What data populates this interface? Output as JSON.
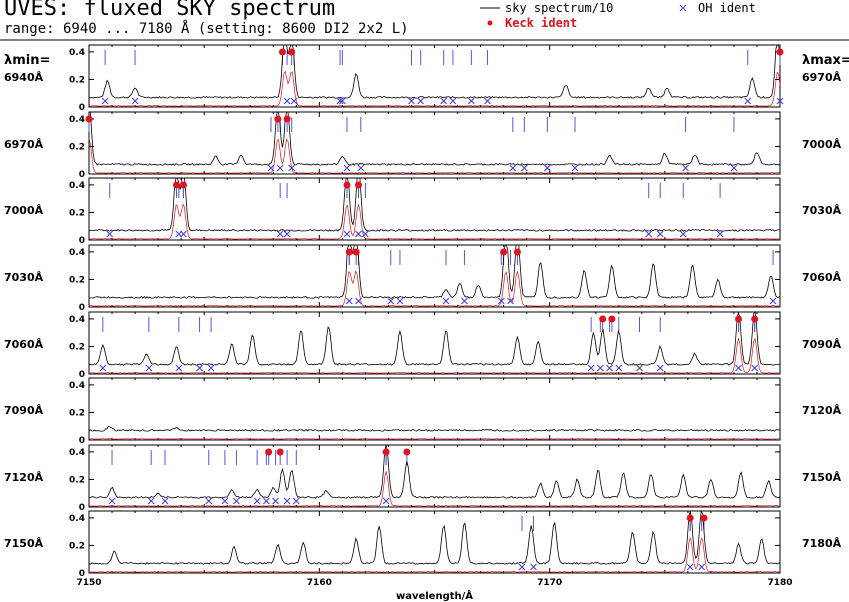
{
  "header": {
    "title": "UVES: fluxed SKY spectrum",
    "subtitle": "range: 6940 ... 7180 Å (setting: 8600 DI2 2x2 L)"
  },
  "legend": {
    "items": [
      {
        "label": "sky spectrum/10",
        "marker": "line",
        "color": "#000000"
      },
      {
        "label": "OH ident",
        "marker": "x",
        "color": "#3a3ae0"
      },
      {
        "label": "Keck ident",
        "marker": "dot",
        "color": "#e0141e"
      }
    ]
  },
  "side_headers": {
    "min": "λmin=",
    "max": "λmax="
  },
  "colors": {
    "spectrum": "#000000",
    "oh": "#3a3ae0",
    "keck": "#e0141e",
    "ticks": "#5555dd",
    "error": "#e0141e"
  },
  "chart_data": {
    "type": "line",
    "xlabel": "wavelength/Å",
    "bottom_axis": {
      "min": 7150,
      "max": 7180,
      "ticks": [
        "7150",
        "7160",
        "7170",
        "7180"
      ]
    },
    "ylim": [
      0,
      0.45
    ],
    "yticks": [
      "0",
      "0.2",
      "0.4"
    ],
    "grid": false,
    "legend_position": "top-right",
    "panels": [
      {
        "min_label": "6940Å",
        "max_label": "6970Å",
        "min": 6940,
        "max": 6970,
        "peaks": [
          [
            6940.8,
            0.12
          ],
          [
            6942.0,
            0.07
          ],
          [
            6948.5,
            0.48
          ],
          [
            6948.8,
            0.48
          ],
          [
            6951.6,
            0.17
          ],
          [
            6960.7,
            0.09
          ],
          [
            6964.3,
            0.07
          ],
          [
            6965.1,
            0.07
          ],
          [
            6968.8,
            0.14
          ],
          [
            6969.9,
            0.48
          ]
        ],
        "oh": [
          6940.7,
          6942.0,
          6948.6,
          6948.9,
          6950.9,
          6951.0,
          6954.0,
          6954.4,
          6955.4,
          6955.8,
          6956.6,
          6957.3,
          6968.6,
          6970.0
        ],
        "keck": [
          6948.4,
          6948.8,
          6970.0
        ]
      },
      {
        "min_label": "6970Å",
        "max_label": "7000Å",
        "min": 6970,
        "max": 7000,
        "peaks": [
          [
            6970.0,
            0.45
          ],
          [
            6975.5,
            0.06
          ],
          [
            6976.6,
            0.07
          ],
          [
            6978.2,
            0.45
          ],
          [
            6978.6,
            0.45
          ],
          [
            6981.0,
            0.06
          ],
          [
            6992.6,
            0.07
          ],
          [
            6995.0,
            0.08
          ],
          [
            6996.3,
            0.07
          ],
          [
            6999.0,
            0.09
          ]
        ],
        "oh": [
          6977.9,
          6978.3,
          6978.8,
          6981.2,
          6981.8,
          6988.4,
          6988.9,
          6989.9,
          6991.1,
          6995.9,
          6998.0
        ],
        "keck": [
          6970.0,
          6978.2,
          6978.6
        ]
      },
      {
        "min_label": "7000Å",
        "max_label": "7030Å",
        "min": 7000,
        "max": 7030,
        "peaks": [
          [
            7003.8,
            0.46
          ],
          [
            7004.1,
            0.46
          ],
          [
            7011.2,
            0.46
          ],
          [
            7011.7,
            0.46
          ]
        ],
        "oh": [
          7000.9,
          7003.9,
          7004.1,
          7008.3,
          7008.6,
          7011.2,
          7011.7,
          7012.0,
          7024.3,
          7024.8,
          7025.8,
          7027.4
        ],
        "keck": [
          7003.8,
          7004.1,
          7011.2,
          7011.7
        ]
      },
      {
        "min_label": "7030Å",
        "max_label": "7060Å",
        "min": 7030,
        "max": 7060,
        "peaks": [
          [
            7041.3,
            0.48
          ],
          [
            7041.6,
            0.48
          ],
          [
            7045.5,
            0.06
          ],
          [
            7046.1,
            0.1
          ],
          [
            7046.9,
            0.09
          ],
          [
            7048.1,
            0.48
          ],
          [
            7048.6,
            0.48
          ],
          [
            7049.6,
            0.26
          ],
          [
            7051.5,
            0.2
          ],
          [
            7052.7,
            0.23
          ],
          [
            7054.5,
            0.25
          ],
          [
            7056.2,
            0.24
          ],
          [
            7057.3,
            0.13
          ],
          [
            7059.6,
            0.16
          ]
        ],
        "oh": [
          7041.3,
          7041.7,
          7043.1,
          7043.5,
          7045.5,
          7046.3,
          7047.9,
          7048.3,
          7059.7
        ],
        "keck": [
          7041.3,
          7041.6,
          7048.0,
          7048.6
        ]
      },
      {
        "min_label": "7060Å",
        "max_label": "7090Å",
        "min": 7060,
        "max": 7090,
        "peaks": [
          [
            7060.6,
            0.14
          ],
          [
            7062.5,
            0.08
          ],
          [
            7063.8,
            0.13
          ],
          [
            7066.2,
            0.15
          ],
          [
            7067.1,
            0.22
          ],
          [
            7069.2,
            0.25
          ],
          [
            7070.4,
            0.28
          ],
          [
            7073.5,
            0.24
          ],
          [
            7075.5,
            0.25
          ],
          [
            7078.6,
            0.2
          ],
          [
            7079.5,
            0.17
          ],
          [
            7081.9,
            0.23
          ],
          [
            7082.3,
            0.25
          ],
          [
            7083.0,
            0.24
          ],
          [
            7084.8,
            0.13
          ],
          [
            7086.3,
            0.08
          ],
          [
            7088.2,
            0.4
          ],
          [
            7088.9,
            0.4
          ]
        ],
        "oh": [
          7060.6,
          7062.6,
          7063.9,
          7064.8,
          7065.3,
          7081.8,
          7082.2,
          7082.6,
          7083.0,
          7083.9,
          7084.8,
          7088.2,
          7088.9
        ],
        "keck": [
          7082.3,
          7082.7,
          7088.2,
          7088.9
        ]
      },
      {
        "min_label": "7090Å",
        "max_label": "7120Å",
        "min": 7090,
        "max": 7120,
        "peaks": [
          [
            7090.9,
            0.03
          ],
          [
            7093.8,
            0.02
          ]
        ],
        "oh": [],
        "keck": []
      },
      {
        "min_label": "7120Å",
        "max_label": "7150Å",
        "min": 7120,
        "max": 7150,
        "peaks": [
          [
            7121.0,
            0.07
          ],
          [
            7123.0,
            0.03
          ],
          [
            7126.2,
            0.05
          ],
          [
            7127.3,
            0.06
          ],
          [
            7128.0,
            0.07
          ],
          [
            7128.4,
            0.2
          ],
          [
            7128.8,
            0.2
          ],
          [
            7130.3,
            0.05
          ],
          [
            7132.9,
            0.4
          ],
          [
            7133.8,
            0.26
          ],
          [
            7139.6,
            0.1
          ],
          [
            7140.3,
            0.12
          ],
          [
            7141.2,
            0.13
          ],
          [
            7142.1,
            0.2
          ],
          [
            7143.2,
            0.18
          ],
          [
            7144.4,
            0.17
          ],
          [
            7145.8,
            0.16
          ],
          [
            7147.0,
            0.13
          ],
          [
            7148.3,
            0.18
          ],
          [
            7149.5,
            0.12
          ]
        ],
        "oh": [
          7121.0,
          7122.7,
          7123.3,
          7125.2,
          7125.9,
          7126.4,
          7127.3,
          7127.7,
          7128.1,
          7128.6,
          7129.0,
          7132.9
        ],
        "keck": [
          7127.8,
          7128.3,
          7132.9,
          7133.8
        ]
      },
      {
        "min_label": "7150Å",
        "max_label": "7180Å",
        "min": 7150,
        "max": 7180,
        "peaks": [
          [
            7151.1,
            0.09
          ],
          [
            7156.3,
            0.12
          ],
          [
            7158.2,
            0.14
          ],
          [
            7159.3,
            0.15
          ],
          [
            7161.6,
            0.18
          ],
          [
            7162.6,
            0.27
          ],
          [
            7165.4,
            0.27
          ],
          [
            7166.3,
            0.3
          ],
          [
            7169.2,
            0.27
          ],
          [
            7170.2,
            0.3
          ],
          [
            7173.6,
            0.23
          ],
          [
            7174.5,
            0.23
          ],
          [
            7176.1,
            0.39
          ],
          [
            7176.6,
            0.39
          ],
          [
            7178.2,
            0.14
          ],
          [
            7179.2,
            0.18
          ]
        ],
        "oh": [
          7168.8,
          7169.3,
          7176.1,
          7176.6
        ],
        "keck": [
          7176.1,
          7176.7
        ]
      }
    ]
  }
}
